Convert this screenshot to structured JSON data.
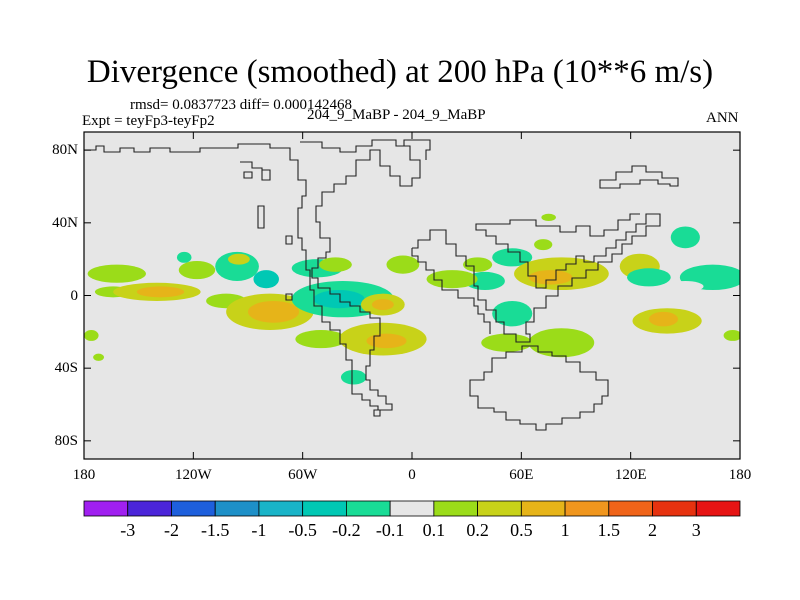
{
  "chart_data": {
    "type": "contour-map",
    "title": "Divergence (smoothed) at 200 hPa (10**6 m/s)",
    "stats_line": "rmsd= 0.0837723 diff= 0.000142468",
    "case_label": "204_9_MaBP - 204_9_MaBP",
    "experiment_label": "Expt = teyFp3-teyFp2",
    "season": "ANN",
    "xlabel": "",
    "ylabel": "",
    "xlim": [
      -180,
      180
    ],
    "ylim": [
      -90,
      90
    ],
    "x_ticks": [
      {
        "value": -180,
        "label": "180"
      },
      {
        "value": -120,
        "label": "120W"
      },
      {
        "value": -60,
        "label": "60W"
      },
      {
        "value": 0,
        "label": "0"
      },
      {
        "value": 60,
        "label": "60E"
      },
      {
        "value": 120,
        "label": "120E"
      },
      {
        "value": 180,
        "label": "180"
      }
    ],
    "y_ticks": [
      {
        "value": 80,
        "label": "80N"
      },
      {
        "value": 40,
        "label": "40N"
      },
      {
        "value": 0,
        "label": "0"
      },
      {
        "value": -40,
        "label": "40S"
      },
      {
        "value": -80,
        "label": "80S"
      }
    ],
    "background_color": "#e6e6e6",
    "colorbar": {
      "levels": [
        "-3",
        "-2",
        "-1.5",
        "-1",
        "-0.5",
        "-0.2",
        "-0.1",
        "0.1",
        "0.2",
        "0.5",
        "1",
        "1.5",
        "2",
        "3"
      ],
      "colors": [
        "#a020f0",
        "#4b25d9",
        "#1e5fdc",
        "#1e90c8",
        "#19b4c8",
        "#00c8b4",
        "#19dc96",
        "#e6e6e6",
        "#9bdc19",
        "#c8d219",
        "#e6b419",
        "#f0961e",
        "#f06419",
        "#e6320f",
        "#e61414"
      ]
    },
    "features": [
      {
        "lon": -162,
        "lat": 12,
        "rx": 16,
        "ry": 5,
        "value": 0.15
      },
      {
        "lon": -164,
        "lat": 2,
        "rx": 10,
        "ry": 3,
        "value": 0.15
      },
      {
        "lon": -140,
        "lat": 2,
        "rx": 24,
        "ry": 5,
        "value": 0.3
      },
      {
        "lon": -138,
        "lat": 2,
        "rx": 13,
        "ry": 3,
        "value": 0.7
      },
      {
        "lon": -118,
        "lat": 14,
        "rx": 10,
        "ry": 5,
        "value": 0.15
      },
      {
        "lon": -102,
        "lat": -3,
        "rx": 11,
        "ry": 4,
        "value": 0.15
      },
      {
        "lon": -125,
        "lat": 21,
        "rx": 4,
        "ry": 3,
        "value": -0.15
      },
      {
        "lon": -96,
        "lat": 16,
        "rx": 12,
        "ry": 8,
        "value": -0.15
      },
      {
        "lon": -95,
        "lat": 20,
        "rx": 6,
        "ry": 3,
        "value": 0.2
      },
      {
        "lon": -80,
        "lat": 9,
        "rx": 7,
        "ry": 5,
        "value": -0.3
      },
      {
        "lon": -78,
        "lat": -9,
        "rx": 24,
        "ry": 10,
        "value": 0.25
      },
      {
        "lon": -76,
        "lat": -9,
        "rx": 14,
        "ry": 6,
        "value": 0.7
      },
      {
        "lon": -52,
        "lat": 15,
        "rx": 14,
        "ry": 5,
        "value": -0.15
      },
      {
        "lon": -42,
        "lat": 17,
        "rx": 9,
        "ry": 4,
        "value": 0.15
      },
      {
        "lon": -38,
        "lat": -2,
        "rx": 28,
        "ry": 10,
        "value": -0.15
      },
      {
        "lon": -40,
        "lat": -2,
        "rx": 14,
        "ry": 5,
        "value": -0.35
      },
      {
        "lon": -50,
        "lat": -24,
        "rx": 14,
        "ry": 5,
        "value": 0.15
      },
      {
        "lon": -16,
        "lat": -5,
        "rx": 12,
        "ry": 6,
        "value": 0.25
      },
      {
        "lon": -16,
        "lat": -5,
        "rx": 6,
        "ry": 3,
        "value": 0.7
      },
      {
        "lon": -5,
        "lat": 17,
        "rx": 9,
        "ry": 5,
        "value": 0.15
      },
      {
        "lon": -16,
        "lat": -24,
        "rx": 24,
        "ry": 9,
        "value": 0.3
      },
      {
        "lon": -14,
        "lat": -25,
        "rx": 11,
        "ry": 4,
        "value": 0.7
      },
      {
        "lon": -32,
        "lat": -45,
        "rx": 7,
        "ry": 4,
        "value": -0.15
      },
      {
        "lon": 36,
        "lat": 17,
        "rx": 8,
        "ry": 4,
        "value": 0.15
      },
      {
        "lon": 40,
        "lat": 8,
        "rx": 11,
        "ry": 5,
        "value": -0.15
      },
      {
        "lon": 22,
        "lat": 9,
        "rx": 14,
        "ry": 5,
        "value": 0.15
      },
      {
        "lon": 55,
        "lat": 21,
        "rx": 11,
        "ry": 5,
        "value": -0.15
      },
      {
        "lon": 75,
        "lat": 43,
        "rx": 4,
        "ry": 2,
        "value": 0.15
      },
      {
        "lon": 72,
        "lat": 28,
        "rx": 5,
        "ry": 3,
        "value": 0.15
      },
      {
        "lon": 82,
        "lat": 12,
        "rx": 26,
        "ry": 9,
        "value": 0.3
      },
      {
        "lon": 76,
        "lat": 10,
        "rx": 12,
        "ry": 4,
        "value": 0.7
      },
      {
        "lon": 125,
        "lat": 16,
        "rx": 11,
        "ry": 7,
        "value": 0.2
      },
      {
        "lon": 150,
        "lat": 32,
        "rx": 8,
        "ry": 6,
        "value": -0.15
      },
      {
        "lon": 130,
        "lat": 10,
        "rx": 12,
        "ry": 5,
        "value": -0.15
      },
      {
        "lon": 165,
        "lat": 10,
        "rx": 18,
        "ry": 7,
        "value": -0.15
      },
      {
        "lon": 150,
        "lat": 5,
        "rx": 10,
        "ry": 3,
        "value": -0.1
      },
      {
        "lon": 55,
        "lat": -10,
        "rx": 11,
        "ry": 7,
        "value": -0.15
      },
      {
        "lon": 52,
        "lat": -26,
        "rx": 14,
        "ry": 5,
        "value": 0.15
      },
      {
        "lon": 82,
        "lat": -26,
        "rx": 18,
        "ry": 8,
        "value": 0.15
      },
      {
        "lon": 140,
        "lat": -14,
        "rx": 19,
        "ry": 7,
        "value": 0.3
      },
      {
        "lon": 138,
        "lat": -13,
        "rx": 8,
        "ry": 4,
        "value": 0.7
      },
      {
        "lon": 176,
        "lat": -22,
        "rx": 5,
        "ry": 3,
        "value": 0.15
      },
      {
        "lon": -176,
        "lat": -22,
        "rx": 4,
        "ry": 3,
        "value": 0.15
      },
      {
        "lon": -172,
        "lat": -34,
        "rx": 3,
        "ry": 2,
        "value": 0.15
      }
    ]
  }
}
